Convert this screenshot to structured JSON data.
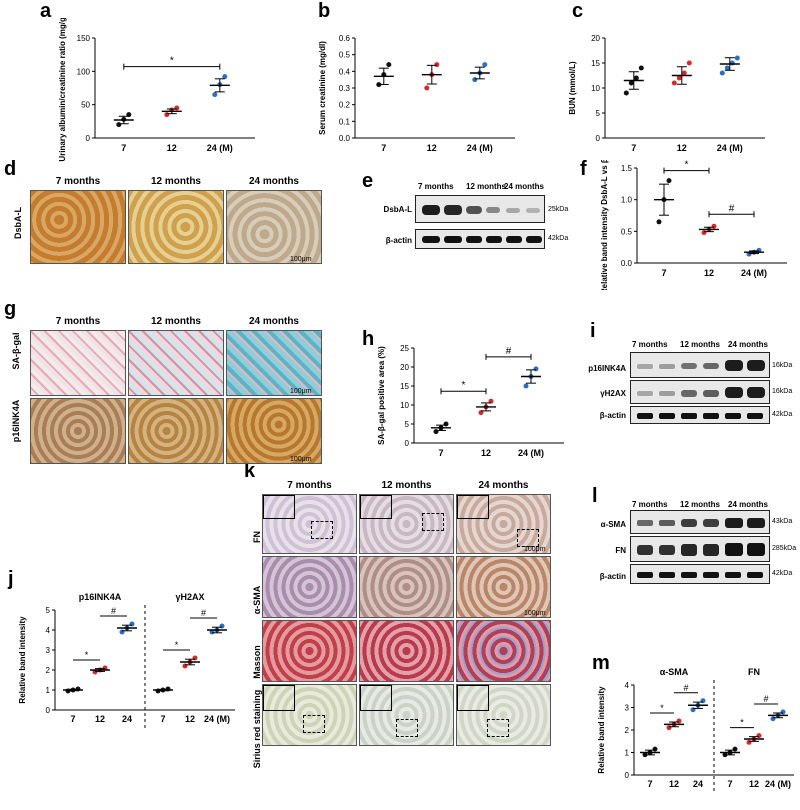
{
  "panels": {
    "a": {
      "letter": "a"
    },
    "b": {
      "letter": "b"
    },
    "c": {
      "letter": "c"
    },
    "d": {
      "letter": "d"
    },
    "e": {
      "letter": "e"
    },
    "f": {
      "letter": "f"
    },
    "g": {
      "letter": "g"
    },
    "h": {
      "letter": "h"
    },
    "i": {
      "letter": "i"
    },
    "j": {
      "letter": "j"
    },
    "k": {
      "letter": "k"
    },
    "l": {
      "letter": "l"
    },
    "m": {
      "letter": "m"
    }
  },
  "timepoints": [
    "7 months",
    "12 months",
    "24 months"
  ],
  "scale_bar": "100μm",
  "d": {
    "row_label": "DsbA-L"
  },
  "g": {
    "row_labels": [
      "SA-β-gal",
      "p16INK4A"
    ]
  },
  "k": {
    "row_labels": [
      "FN",
      "α-SMA",
      "Masson",
      "Sirius red staining"
    ]
  },
  "e": {
    "headers": [
      "7 months",
      "12 months",
      "24 months"
    ],
    "rows": [
      "DsbA-L",
      "β-actin"
    ],
    "kda": [
      "25kDa",
      "42kDa"
    ]
  },
  "i": {
    "headers": [
      "7 months",
      "12 months",
      "24 months"
    ],
    "rows": [
      "p16INK4A",
      "γH2AX",
      "β-actin"
    ],
    "kda": [
      "16kDa",
      "16kDa",
      "42kDa"
    ]
  },
  "l": {
    "headers": [
      "7 months",
      "12 months",
      "24 months"
    ],
    "rows": [
      "α-SMA",
      "FN",
      "β-actin"
    ],
    "kda": [
      "43kDa",
      "285kDa",
      "42kDa"
    ]
  },
  "chart_data": [
    {
      "id": "a",
      "type": "scatter",
      "ylabel": "Urinary albumin/creatinine ratio (mg/g)",
      "categories": [
        "7",
        "12",
        "24 (M)"
      ],
      "ylim": [
        0,
        150
      ],
      "yticks": [
        0,
        50,
        100,
        150
      ],
      "groups": [
        [
          20,
          28,
          35
        ],
        [
          35,
          42,
          45
        ],
        [
          65,
          80,
          92
        ]
      ],
      "means": [
        27,
        40,
        79
      ],
      "sig": [
        {
          "from": 0,
          "to": 2,
          "label": "*"
        }
      ]
    },
    {
      "id": "b",
      "type": "scatter",
      "ylabel": "Serum creatinine (mg/dl)",
      "categories": [
        "7",
        "12",
        "24 (M)"
      ],
      "ylim": [
        0.0,
        0.6
      ],
      "yticks": [
        0.0,
        0.1,
        0.2,
        0.3,
        0.4,
        0.5,
        0.6
      ],
      "groups": [
        [
          0.32,
          0.38,
          0.44
        ],
        [
          0.3,
          0.38,
          0.44
        ],
        [
          0.35,
          0.39,
          0.44
        ]
      ],
      "means": [
        0.37,
        0.38,
        0.39
      ],
      "sig": []
    },
    {
      "id": "c",
      "type": "scatter",
      "ylabel": "BUN (mmol/L)",
      "categories": [
        "7",
        "12",
        "24 (M)"
      ],
      "ylim": [
        0,
        20
      ],
      "yticks": [
        0,
        5,
        10,
        15,
        20
      ],
      "groups": [
        [
          9,
          11,
          12,
          14
        ],
        [
          11,
          12,
          13,
          15
        ],
        [
          13,
          14,
          15,
          16
        ]
      ],
      "means": [
        11.5,
        12.5,
        14.8
      ],
      "sig": []
    },
    {
      "id": "f",
      "type": "scatter",
      "ylabel": "Relative band intensity DsbA-L vs β-actin",
      "categories": [
        "7",
        "12",
        "24  (M)"
      ],
      "ylim": [
        0.0,
        1.5
      ],
      "yticks": [
        0.0,
        0.5,
        1.0,
        1.5
      ],
      "groups": [
        [
          0.65,
          1.0,
          1.3
        ],
        [
          0.48,
          0.53,
          0.58
        ],
        [
          0.14,
          0.17,
          0.2
        ]
      ],
      "means": [
        1.0,
        0.53,
        0.17
      ],
      "sig": [
        {
          "from": 0,
          "to": 1,
          "label": "*"
        },
        {
          "from": 1,
          "to": 2,
          "label": "#"
        }
      ]
    },
    {
      "id": "h",
      "type": "scatter",
      "ylabel": "SA-β-gal positive area (%)",
      "categories": [
        "7",
        "12",
        "24  (M)"
      ],
      "ylim": [
        0,
        25
      ],
      "yticks": [
        0,
        5,
        10,
        15,
        20,
        25
      ],
      "groups": [
        [
          3,
          4,
          5
        ],
        [
          8,
          9.5,
          11
        ],
        [
          15,
          17.5,
          19.5
        ]
      ],
      "means": [
        4,
        9.5,
        17.5
      ],
      "sig": [
        {
          "from": 0,
          "to": 1,
          "label": "*"
        },
        {
          "from": 1,
          "to": 2,
          "label": "#"
        }
      ]
    },
    {
      "id": "j",
      "type": "scatter",
      "ylabel": "Relative band intensity",
      "ylim": [
        0,
        5
      ],
      "yticks": [
        0,
        1,
        2,
        3,
        4,
        5
      ],
      "subgroups": [
        {
          "name": "p16INK4A",
          "categories": [
            "7",
            "12",
            "24"
          ],
          "groups": [
            [
              0.95,
              1.0,
              1.05
            ],
            [
              1.9,
              2.0,
              2.1
            ],
            [
              3.9,
              4.1,
              4.3
            ]
          ],
          "means": [
            1.0,
            2.0,
            4.1
          ]
        },
        {
          "name": "γH2AX",
          "categories": [
            "7",
            "12",
            "24  (M)"
          ],
          "groups": [
            [
              0.95,
              1.0,
              1.05
            ],
            [
              2.2,
              2.4,
              2.6
            ],
            [
              3.9,
              4.0,
              4.2
            ]
          ],
          "means": [
            1.0,
            2.4,
            4.0
          ]
        }
      ]
    },
    {
      "id": "m",
      "type": "scatter",
      "ylabel": "Relative band intensity",
      "ylim": [
        0,
        4
      ],
      "yticks": [
        0,
        1,
        2,
        3,
        4
      ],
      "subgroups": [
        {
          "name": "α-SMA",
          "categories": [
            "7",
            "12",
            "24"
          ],
          "groups": [
            [
              0.9,
              1.0,
              1.15
            ],
            [
              2.1,
              2.25,
              2.4
            ],
            [
              2.9,
              3.1,
              3.3
            ]
          ],
          "means": [
            1.0,
            2.25,
            3.1
          ]
        },
        {
          "name": "FN",
          "categories": [
            "7",
            "12",
            "24  (M)"
          ],
          "groups": [
            [
              0.9,
              1.0,
              1.15
            ],
            [
              1.45,
              1.6,
              1.75
            ],
            [
              2.5,
              2.65,
              2.8
            ]
          ],
          "means": [
            1.0,
            1.6,
            2.65
          ]
        }
      ]
    }
  ],
  "colors": {
    "g0": "#111111",
    "g1": "#d62a2a",
    "g2": "#2a6fc4",
    "tissue_brown": "#b98a4a",
    "sabgal_blue": "#5cb3c7",
    "masson_red": "#c0404a",
    "sirius_bg": "#dfe3d2"
  }
}
